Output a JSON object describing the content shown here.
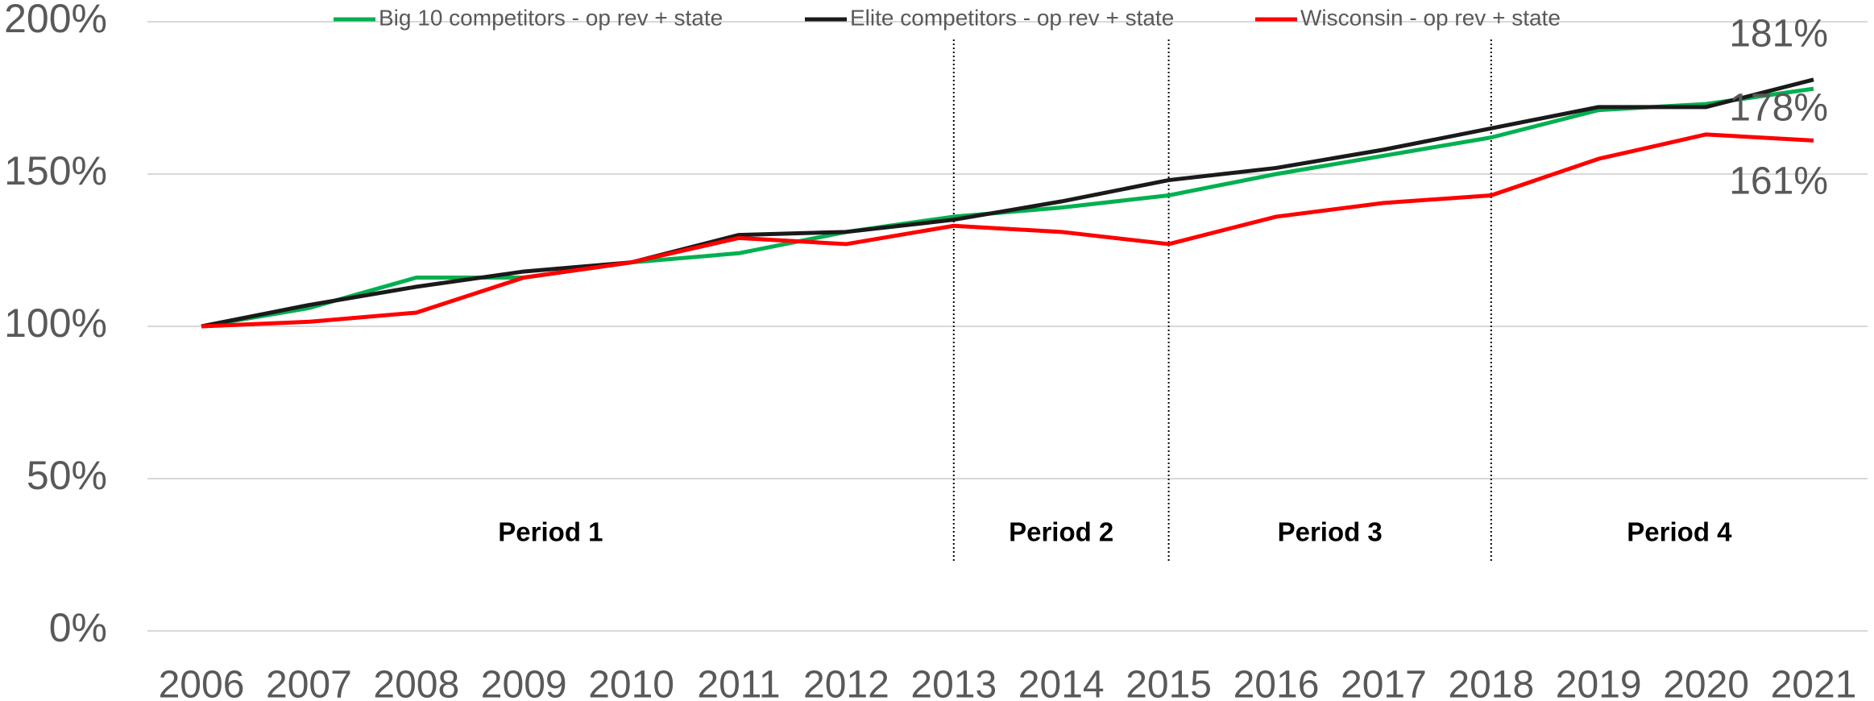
{
  "chart_data": {
    "type": "line",
    "categories": [
      "2006",
      "2007",
      "2008",
      "2009",
      "2010",
      "2011",
      "2012",
      "2013",
      "2014",
      "2015",
      "2016",
      "2017",
      "2018",
      "2019",
      "2020",
      "2021"
    ],
    "series": [
      {
        "name": "Big 10 competitors - op rev + state",
        "color": "#00b050",
        "values": [
          100,
          106,
          116,
          116,
          121,
          124,
          131,
          136,
          139,
          143,
          150,
          156,
          162,
          171,
          173,
          178
        ],
        "value_labels": [
          null,
          null,
          null,
          null,
          null,
          null,
          null,
          null,
          null,
          null,
          null,
          null,
          null,
          null,
          null,
          "178%"
        ]
      },
      {
        "name": "Elite competitors - op rev + state",
        "color": "#1a1a1a",
        "values": [
          100,
          107,
          113,
          118,
          121,
          130,
          131,
          135,
          141,
          148,
          152,
          158,
          165,
          172,
          172,
          181
        ],
        "value_labels": [
          null,
          null,
          null,
          null,
          null,
          null,
          null,
          null,
          null,
          null,
          null,
          null,
          null,
          null,
          null,
          "181%"
        ]
      },
      {
        "name": "Wisconsin - op rev + state",
        "color": "#ff0000",
        "values": [
          100,
          101.5,
          104.5,
          116,
          121,
          129,
          127,
          133,
          131,
          127,
          136,
          140.5,
          143,
          155,
          163,
          161
        ],
        "value_labels": [
          null,
          null,
          null,
          null,
          null,
          null,
          null,
          null,
          null,
          null,
          null,
          null,
          null,
          null,
          null,
          "161%"
        ]
      }
    ],
    "ylim": [
      0,
      200
    ],
    "yticks": [
      {
        "value": 0,
        "label": "0%"
      },
      {
        "value": 50,
        "label": "50%"
      },
      {
        "value": 100,
        "label": "100%"
      },
      {
        "value": 150,
        "label": "150%"
      },
      {
        "value": 200,
        "label": "200%"
      }
    ],
    "grid": true,
    "legend": "top",
    "dividers": [
      "2013",
      "2015",
      "2018"
    ],
    "periods": [
      "Period 1",
      "Period 2",
      "Period 3",
      "Period 4"
    ]
  }
}
